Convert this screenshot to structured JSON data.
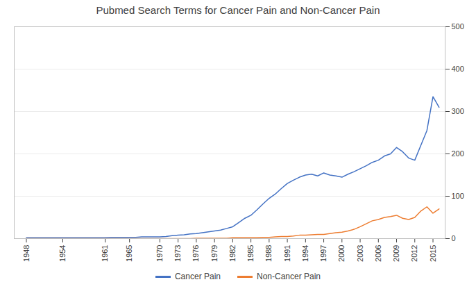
{
  "chart_data": {
    "type": "line",
    "title": "Pubmed Search Terms for Cancer Pain and Non-Cancer Pain",
    "x": [
      1948,
      1949,
      1950,
      1951,
      1952,
      1953,
      1954,
      1955,
      1956,
      1957,
      1958,
      1959,
      1960,
      1961,
      1962,
      1963,
      1964,
      1965,
      1966,
      1967,
      1968,
      1969,
      1970,
      1971,
      1972,
      1973,
      1974,
      1975,
      1976,
      1977,
      1978,
      1979,
      1980,
      1981,
      1982,
      1983,
      1984,
      1985,
      1986,
      1987,
      1988,
      1989,
      1990,
      1991,
      1992,
      1993,
      1994,
      1995,
      1996,
      1997,
      1998,
      1999,
      2000,
      2001,
      2002,
      2003,
      2004,
      2005,
      2006,
      2007,
      2008,
      2009,
      2010,
      2011,
      2012,
      2013,
      2014,
      2015,
      2016
    ],
    "series": [
      {
        "name": "Cancer Pain",
        "color": "#4472C4",
        "values": [
          2,
          2,
          2,
          2,
          2,
          2,
          2,
          2,
          2,
          2,
          2,
          2,
          2,
          2,
          3,
          3,
          3,
          3,
          3,
          4,
          4,
          4,
          4,
          5,
          7,
          8,
          9,
          11,
          12,
          14,
          16,
          18,
          20,
          24,
          28,
          38,
          48,
          55,
          68,
          82,
          95,
          105,
          118,
          130,
          138,
          145,
          150,
          152,
          148,
          155,
          150,
          148,
          145,
          152,
          158,
          165,
          172,
          180,
          185,
          195,
          200,
          215,
          205,
          190,
          185,
          220,
          255,
          335,
          310
        ]
      },
      {
        "name": "Non-Cancer Pain",
        "color": "#ED7D31",
        "values": [
          0,
          0,
          0,
          0,
          0,
          0,
          0,
          0,
          0,
          0,
          0,
          0,
          0,
          0,
          0,
          0,
          0,
          0,
          0,
          0,
          0,
          0,
          0,
          0,
          0,
          0,
          0,
          0,
          1,
          1,
          1,
          1,
          1,
          1,
          2,
          2,
          2,
          2,
          2,
          3,
          3,
          4,
          5,
          5,
          6,
          8,
          8,
          9,
          10,
          10,
          12,
          14,
          15,
          18,
          22,
          28,
          35,
          42,
          45,
          50,
          52,
          55,
          48,
          45,
          50,
          65,
          75,
          60,
          70
        ]
      }
    ],
    "xlim": [
      1946,
      2017
    ],
    "xticks": [
      1948,
      1954,
      1961,
      1965,
      1970,
      1973,
      1976,
      1979,
      1982,
      1985,
      1988,
      1991,
      1994,
      1997,
      2000,
      2003,
      2006,
      2009,
      2012,
      2015
    ],
    "ylim": [
      0,
      500
    ],
    "yticks": [
      0,
      100,
      200,
      300,
      400,
      500
    ],
    "grid": true,
    "legend": "bottom"
  }
}
